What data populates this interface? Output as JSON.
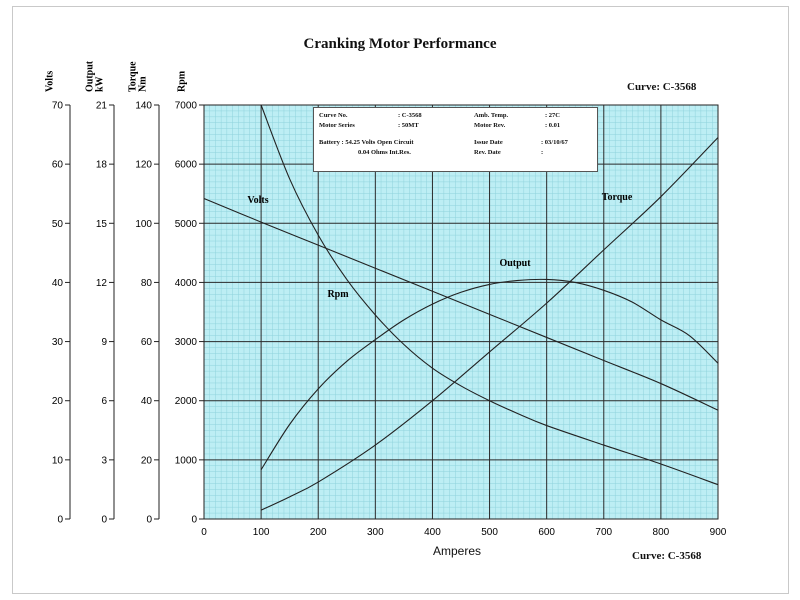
{
  "title": "Cranking Motor Performance",
  "curve_label": "Curve: C-3568",
  "info_box": {
    "curve_no_label": "Curve No.",
    "curve_no_value": ": C-3568",
    "motor_series_label": "Motor Series",
    "motor_series_value": ": 50MT",
    "amb_temp_label": "Amb. Temp.",
    "amb_temp_value": ": 27C",
    "motor_rev_label": "Motor Rev.",
    "motor_rev_value": ": 0.01",
    "battery_line1": "Battery : 54.25 Volts Open Circuit",
    "battery_line2": "0.04 Ohms Int.Res.",
    "issue_date_label": "Issue Date",
    "issue_date_value": ": 03/10/67",
    "rev_date_label": "Rev. Date",
    "rev_date_value": ":"
  },
  "colors": {
    "plot_bg": "#bdeef4",
    "grid_major": "#2a2a2a",
    "grid_minor": "#8fd3dc",
    "line": "#222222"
  },
  "chart_data": {
    "type": "line",
    "xlabel": "Amperes",
    "xlim": [
      0,
      900
    ],
    "x_ticks": [
      0,
      100,
      200,
      300,
      400,
      500,
      600,
      700,
      800,
      900
    ],
    "axes": [
      {
        "label": "Volts",
        "lim": [
          0,
          70
        ],
        "ticks": [
          0,
          10,
          20,
          30,
          40,
          50,
          60,
          70
        ]
      },
      {
        "label": "Output kW",
        "lim": [
          0,
          21
        ],
        "ticks": [
          0,
          3,
          6,
          9,
          12,
          15,
          18,
          21
        ]
      },
      {
        "label": "Torque Nm",
        "lim": [
          0,
          140
        ],
        "ticks": [
          0,
          20,
          40,
          60,
          80,
          100,
          120,
          140
        ]
      },
      {
        "label": "Rpm",
        "lim": [
          0,
          7000
        ],
        "ticks": [
          0,
          1000,
          2000,
          3000,
          4000,
          5000,
          6000,
          7000
        ]
      }
    ],
    "series": [
      {
        "name": "Volts",
        "axis": "Volts",
        "x": [
          0,
          100,
          200,
          300,
          400,
          500,
          600,
          700,
          800,
          900
        ],
        "y": [
          54.2,
          50.2,
          46.3,
          42.4,
          38.5,
          34.6,
          30.7,
          26.8,
          22.9,
          18.4
        ]
      },
      {
        "name": "Rpm",
        "axis": "Rpm",
        "x": [
          100,
          150,
          200,
          250,
          300,
          350,
          400,
          450,
          500,
          550,
          600,
          700,
          800,
          900
        ],
        "y": [
          7000,
          5750,
          4800,
          4050,
          3450,
          2950,
          2550,
          2250,
          2000,
          1780,
          1580,
          1250,
          930,
          580
        ]
      },
      {
        "name": "Output",
        "axis": "Output kW",
        "x": [
          100,
          150,
          200,
          250,
          300,
          350,
          400,
          450,
          500,
          550,
          600,
          650,
          700,
          750,
          800,
          850,
          900
        ],
        "y": [
          2.5,
          4.8,
          6.6,
          8.0,
          9.1,
          10.1,
          10.9,
          11.5,
          11.9,
          12.1,
          12.15,
          12.0,
          11.6,
          11.0,
          10.1,
          9.3,
          7.9
        ]
      },
      {
        "name": "Torque",
        "axis": "Torque Nm",
        "x": [
          100,
          150,
          200,
          300,
          400,
          500,
          600,
          700,
          800,
          900
        ],
        "y": [
          3,
          7.5,
          12.5,
          25,
          40,
          56.5,
          73,
          91,
          109,
          129
        ]
      }
    ]
  }
}
